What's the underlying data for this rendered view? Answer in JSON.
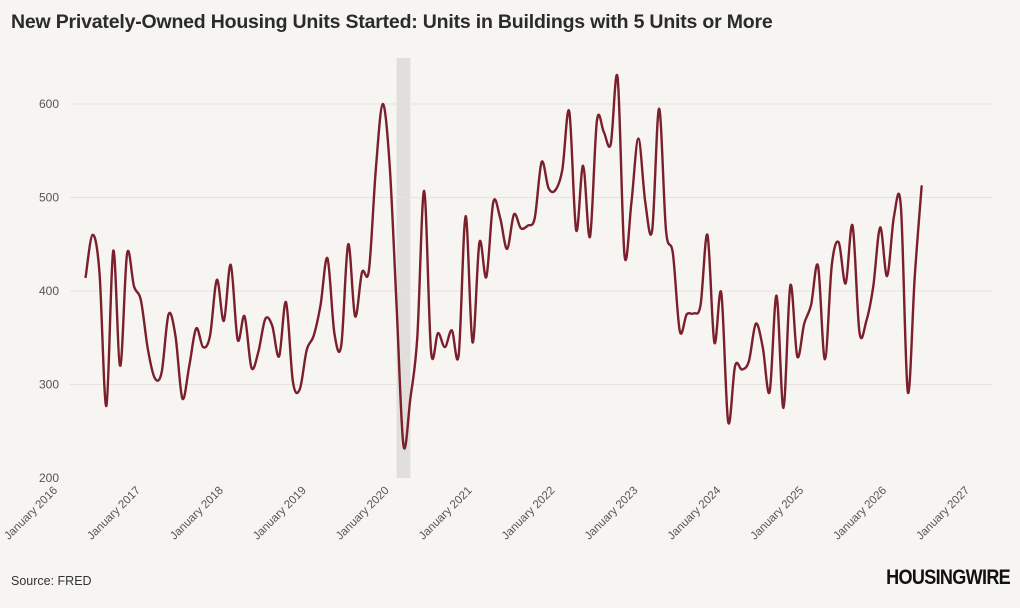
{
  "title": "New Privately-Owned Housing Units Started: Units in Buildings with 5 Units or More",
  "source": "Source: FRED",
  "logo": "HOUSINGWIRE",
  "chart_data": {
    "type": "line",
    "ylim": [
      200,
      650
    ],
    "yticks": [
      200,
      300,
      400,
      500,
      600
    ],
    "xticks": [
      "January 2016",
      "January 2017",
      "January 2018",
      "January 2019",
      "January 2020",
      "January 2021",
      "January 2022",
      "January 2023",
      "January 2024",
      "January 2025",
      "January 2026",
      "January 2027"
    ],
    "grid": true,
    "line_color": "#7a1f2b",
    "recession_band": {
      "start": "2020-02",
      "end": "2020-04",
      "color": "#e0dfdc"
    },
    "series": [
      {
        "points": [
          [
            "2016-05",
            415
          ],
          [
            "2016-06",
            460
          ],
          [
            "2016-07",
            420
          ],
          [
            "2016-08",
            277
          ],
          [
            "2016-09",
            443
          ],
          [
            "2016-10",
            320
          ],
          [
            "2016-11",
            440
          ],
          [
            "2016-12",
            405
          ],
          [
            "2017-01",
            390
          ],
          [
            "2017-02",
            338
          ],
          [
            "2017-03",
            307
          ],
          [
            "2017-04",
            313
          ],
          [
            "2017-05",
            375
          ],
          [
            "2017-06",
            352
          ],
          [
            "2017-07",
            285
          ],
          [
            "2017-08",
            320
          ],
          [
            "2017-09",
            360
          ],
          [
            "2017-10",
            340
          ],
          [
            "2017-11",
            352
          ],
          [
            "2017-12",
            412
          ],
          [
            "2018-01",
            368
          ],
          [
            "2018-02",
            428
          ],
          [
            "2018-03",
            348
          ],
          [
            "2018-04",
            373
          ],
          [
            "2018-05",
            318
          ],
          [
            "2018-06",
            335
          ],
          [
            "2018-07",
            370
          ],
          [
            "2018-08",
            363
          ],
          [
            "2018-09",
            330
          ],
          [
            "2018-10",
            388
          ],
          [
            "2018-11",
            303
          ],
          [
            "2018-12",
            295
          ],
          [
            "2019-01",
            337
          ],
          [
            "2019-02",
            352
          ],
          [
            "2019-03",
            385
          ],
          [
            "2019-04",
            435
          ],
          [
            "2019-05",
            355
          ],
          [
            "2019-06",
            342
          ],
          [
            "2019-07",
            450
          ],
          [
            "2019-08",
            373
          ],
          [
            "2019-09",
            420
          ],
          [
            "2019-10",
            422
          ],
          [
            "2019-11",
            530
          ],
          [
            "2019-12",
            600
          ],
          [
            "2020-01",
            535
          ],
          [
            "2020-02",
            385
          ],
          [
            "2020-03",
            235
          ],
          [
            "2020-04",
            285
          ],
          [
            "2020-05",
            350
          ],
          [
            "2020-06",
            507
          ],
          [
            "2020-07",
            335
          ],
          [
            "2020-08",
            355
          ],
          [
            "2020-09",
            340
          ],
          [
            "2020-10",
            358
          ],
          [
            "2020-11",
            332
          ],
          [
            "2020-12",
            480
          ],
          [
            "2021-01",
            345
          ],
          [
            "2021-02",
            452
          ],
          [
            "2021-03",
            415
          ],
          [
            "2021-04",
            495
          ],
          [
            "2021-05",
            478
          ],
          [
            "2021-06",
            445
          ],
          [
            "2021-07",
            482
          ],
          [
            "2021-08",
            467
          ],
          [
            "2021-09",
            470
          ],
          [
            "2021-10",
            478
          ],
          [
            "2021-11",
            538
          ],
          [
            "2021-12",
            510
          ],
          [
            "2022-01",
            508
          ],
          [
            "2022-02",
            530
          ],
          [
            "2022-03",
            592
          ],
          [
            "2022-04",
            465
          ],
          [
            "2022-05",
            534
          ],
          [
            "2022-06",
            458
          ],
          [
            "2022-07",
            582
          ],
          [
            "2022-08",
            570
          ],
          [
            "2022-09",
            557
          ],
          [
            "2022-10",
            628
          ],
          [
            "2022-11",
            438
          ],
          [
            "2022-12",
            495
          ],
          [
            "2023-01",
            563
          ],
          [
            "2023-02",
            495
          ],
          [
            "2023-03",
            465
          ],
          [
            "2023-04",
            595
          ],
          [
            "2023-05",
            465
          ],
          [
            "2023-06",
            440
          ],
          [
            "2023-07",
            357
          ],
          [
            "2023-08",
            375
          ],
          [
            "2023-09",
            376
          ],
          [
            "2023-10",
            385
          ],
          [
            "2023-11",
            460
          ],
          [
            "2023-12",
            345
          ],
          [
            "2024-01",
            398
          ],
          [
            "2024-02",
            260
          ],
          [
            "2024-03",
            320
          ],
          [
            "2024-04",
            316
          ],
          [
            "2024-05",
            325
          ],
          [
            "2024-06",
            365
          ],
          [
            "2024-07",
            340
          ],
          [
            "2024-08",
            292
          ],
          [
            "2024-09",
            395
          ],
          [
            "2024-10",
            275
          ],
          [
            "2024-11",
            406
          ],
          [
            "2024-12",
            330
          ],
          [
            "2025-01",
            365
          ],
          [
            "2025-02",
            385
          ],
          [
            "2025-03",
            427
          ],
          [
            "2025-04",
            327
          ],
          [
            "2025-05",
            428
          ],
          [
            "2025-06",
            452
          ],
          [
            "2025-07",
            408
          ],
          [
            "2025-08",
            470
          ],
          [
            "2025-09",
            356
          ],
          [
            "2025-10",
            368
          ],
          [
            "2025-11",
            405
          ],
          [
            "2025-12",
            468
          ],
          [
            "2026-01",
            416
          ],
          [
            "2026-02",
            480
          ],
          [
            "2026-03",
            490
          ],
          [
            "2026-04",
            292
          ],
          [
            "2026-05",
            415
          ],
          [
            "2026-06",
            512
          ]
        ]
      }
    ]
  }
}
